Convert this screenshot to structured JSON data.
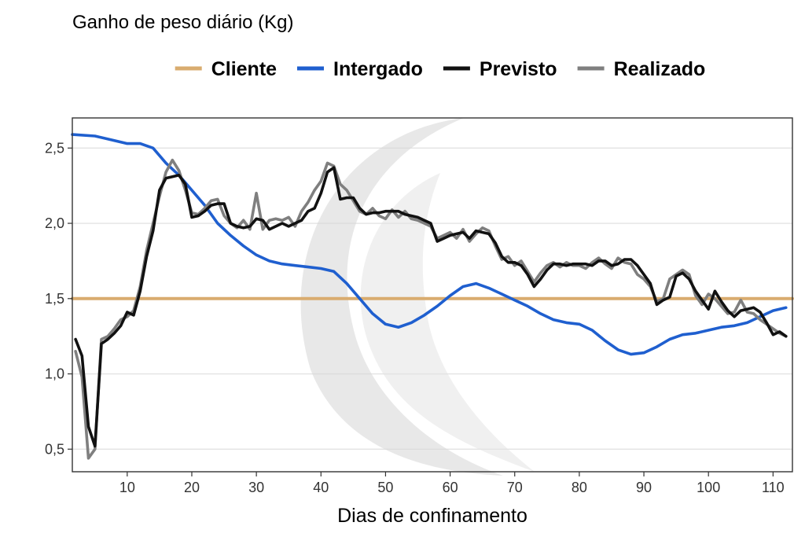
{
  "chart_data": {
    "type": "line",
    "title": "Ganho de peso diário (Kg)",
    "xlabel": "Dias de confinamento",
    "ylabel": "",
    "xlim": [
      1.5,
      113
    ],
    "ylim": [
      0.35,
      2.7
    ],
    "x_ticks": [
      10,
      20,
      30,
      40,
      50,
      60,
      70,
      80,
      90,
      100,
      110
    ],
    "x_tick_labels": [
      "10",
      "20",
      "30",
      "40",
      "50",
      "60",
      "70",
      "80",
      "90",
      "100",
      "110"
    ],
    "y_ticks": [
      0.5,
      1.0,
      1.5,
      2.0,
      2.5
    ],
    "y_tick_labels": [
      "0,5",
      "1,0",
      "1,5",
      "2,0",
      "2,5"
    ],
    "grid": true,
    "legend_position": "top",
    "series": [
      {
        "name": "Cliente",
        "color": "#D9AC6F",
        "points": [
          [
            1.5,
            1.5
          ],
          [
            113,
            1.5
          ]
        ]
      },
      {
        "name": "Intergado",
        "color": "#1F5FCF",
        "points": [
          [
            1.5,
            2.59
          ],
          [
            5,
            2.58
          ],
          [
            8,
            2.55
          ],
          [
            10,
            2.53
          ],
          [
            12,
            2.53
          ],
          [
            14,
            2.5
          ],
          [
            16,
            2.4
          ],
          [
            18,
            2.32
          ],
          [
            20,
            2.22
          ],
          [
            22,
            2.12
          ],
          [
            24,
            2.0
          ],
          [
            26,
            1.92
          ],
          [
            28,
            1.85
          ],
          [
            30,
            1.79
          ],
          [
            32,
            1.75
          ],
          [
            34,
            1.73
          ],
          [
            36,
            1.72
          ],
          [
            38,
            1.71
          ],
          [
            40,
            1.7
          ],
          [
            42,
            1.68
          ],
          [
            44,
            1.6
          ],
          [
            46,
            1.5
          ],
          [
            48,
            1.4
          ],
          [
            50,
            1.33
          ],
          [
            52,
            1.31
          ],
          [
            54,
            1.34
          ],
          [
            56,
            1.39
          ],
          [
            58,
            1.45
          ],
          [
            60,
            1.52
          ],
          [
            62,
            1.58
          ],
          [
            64,
            1.6
          ],
          [
            66,
            1.57
          ],
          [
            68,
            1.53
          ],
          [
            70,
            1.49
          ],
          [
            72,
            1.45
          ],
          [
            74,
            1.4
          ],
          [
            76,
            1.36
          ],
          [
            78,
            1.34
          ],
          [
            80,
            1.33
          ],
          [
            82,
            1.29
          ],
          [
            84,
            1.22
          ],
          [
            86,
            1.16
          ],
          [
            88,
            1.13
          ],
          [
            90,
            1.14
          ],
          [
            92,
            1.18
          ],
          [
            94,
            1.23
          ],
          [
            96,
            1.26
          ],
          [
            98,
            1.27
          ],
          [
            100,
            1.29
          ],
          [
            102,
            1.31
          ],
          [
            104,
            1.32
          ],
          [
            106,
            1.34
          ],
          [
            108,
            1.38
          ],
          [
            110,
            1.42
          ],
          [
            112,
            1.44
          ]
        ]
      },
      {
        "name": "Previsto",
        "color": "#111111",
        "points": [
          [
            2,
            1.23
          ],
          [
            3,
            1.12
          ],
          [
            4,
            0.65
          ],
          [
            5,
            0.52
          ],
          [
            6,
            1.2
          ],
          [
            7,
            1.23
          ],
          [
            8,
            1.27
          ],
          [
            9,
            1.32
          ],
          [
            10,
            1.41
          ],
          [
            11,
            1.39
          ],
          [
            12,
            1.55
          ],
          [
            13,
            1.78
          ],
          [
            14,
            1.95
          ],
          [
            15,
            2.22
          ],
          [
            16,
            2.3
          ],
          [
            17,
            2.31
          ],
          [
            18,
            2.32
          ],
          [
            19,
            2.26
          ],
          [
            20,
            2.04
          ],
          [
            21,
            2.05
          ],
          [
            22,
            2.08
          ],
          [
            23,
            2.12
          ],
          [
            24,
            2.13
          ],
          [
            25,
            2.13
          ],
          [
            26,
            2.0
          ],
          [
            27,
            1.98
          ],
          [
            28,
            1.97
          ],
          [
            29,
            1.98
          ],
          [
            30,
            2.03
          ],
          [
            31,
            2.02
          ],
          [
            32,
            1.96
          ],
          [
            33,
            1.98
          ],
          [
            34,
            2.0
          ],
          [
            35,
            1.98
          ],
          [
            36,
            2.0
          ],
          [
            37,
            2.02
          ],
          [
            38,
            2.08
          ],
          [
            39,
            2.1
          ],
          [
            40,
            2.2
          ],
          [
            41,
            2.34
          ],
          [
            42,
            2.37
          ],
          [
            43,
            2.16
          ],
          [
            44,
            2.17
          ],
          [
            45,
            2.17
          ],
          [
            46,
            2.1
          ],
          [
            47,
            2.06
          ],
          [
            48,
            2.07
          ],
          [
            49,
            2.07
          ],
          [
            50,
            2.08
          ],
          [
            51,
            2.08
          ],
          [
            52,
            2.08
          ],
          [
            53,
            2.06
          ],
          [
            54,
            2.05
          ],
          [
            55,
            2.04
          ],
          [
            56,
            2.02
          ],
          [
            57,
            2.0
          ],
          [
            58,
            1.88
          ],
          [
            59,
            1.9
          ],
          [
            60,
            1.92
          ],
          [
            61,
            1.93
          ],
          [
            62,
            1.94
          ],
          [
            63,
            1.9
          ],
          [
            64,
            1.95
          ],
          [
            65,
            1.94
          ],
          [
            66,
            1.93
          ],
          [
            67,
            1.87
          ],
          [
            68,
            1.78
          ],
          [
            69,
            1.74
          ],
          [
            70,
            1.74
          ],
          [
            71,
            1.72
          ],
          [
            72,
            1.66
          ],
          [
            73,
            1.58
          ],
          [
            74,
            1.63
          ],
          [
            75,
            1.69
          ],
          [
            76,
            1.73
          ],
          [
            77,
            1.73
          ],
          [
            78,
            1.72
          ],
          [
            79,
            1.73
          ],
          [
            80,
            1.73
          ],
          [
            81,
            1.73
          ],
          [
            82,
            1.72
          ],
          [
            83,
            1.75
          ],
          [
            84,
            1.75
          ],
          [
            85,
            1.72
          ],
          [
            86,
            1.73
          ],
          [
            87,
            1.76
          ],
          [
            88,
            1.76
          ],
          [
            89,
            1.72
          ],
          [
            90,
            1.66
          ],
          [
            91,
            1.6
          ],
          [
            92,
            1.46
          ],
          [
            93,
            1.49
          ],
          [
            94,
            1.51
          ],
          [
            95,
            1.65
          ],
          [
            96,
            1.67
          ],
          [
            97,
            1.63
          ],
          [
            98,
            1.55
          ],
          [
            99,
            1.49
          ],
          [
            100,
            1.43
          ],
          [
            101,
            1.55
          ],
          [
            102,
            1.48
          ],
          [
            103,
            1.42
          ],
          [
            104,
            1.38
          ],
          [
            105,
            1.42
          ],
          [
            106,
            1.43
          ],
          [
            107,
            1.44
          ],
          [
            108,
            1.41
          ],
          [
            109,
            1.34
          ],
          [
            110,
            1.26
          ],
          [
            111,
            1.28
          ],
          [
            112,
            1.25
          ]
        ]
      },
      {
        "name": "Realizado",
        "color": "#7F7F7F",
        "points": [
          [
            2,
            1.15
          ],
          [
            3,
            0.98
          ],
          [
            4,
            0.44
          ],
          [
            5,
            0.5
          ],
          [
            6,
            1.23
          ],
          [
            7,
            1.25
          ],
          [
            8,
            1.3
          ],
          [
            9,
            1.36
          ],
          [
            10,
            1.38
          ],
          [
            11,
            1.42
          ],
          [
            12,
            1.58
          ],
          [
            13,
            1.82
          ],
          [
            14,
            2.0
          ],
          [
            15,
            2.18
          ],
          [
            16,
            2.34
          ],
          [
            17,
            2.42
          ],
          [
            18,
            2.35
          ],
          [
            19,
            2.22
          ],
          [
            20,
            2.07
          ],
          [
            21,
            2.06
          ],
          [
            22,
            2.1
          ],
          [
            23,
            2.15
          ],
          [
            24,
            2.16
          ],
          [
            25,
            2.05
          ],
          [
            26,
            2.0
          ],
          [
            27,
            1.97
          ],
          [
            28,
            2.02
          ],
          [
            29,
            1.96
          ],
          [
            30,
            2.2
          ],
          [
            31,
            1.96
          ],
          [
            32,
            2.02
          ],
          [
            33,
            2.03
          ],
          [
            34,
            2.02
          ],
          [
            35,
            2.04
          ],
          [
            36,
            1.98
          ],
          [
            37,
            2.08
          ],
          [
            38,
            2.14
          ],
          [
            39,
            2.22
          ],
          [
            40,
            2.28
          ],
          [
            41,
            2.4
          ],
          [
            42,
            2.38
          ],
          [
            43,
            2.26
          ],
          [
            44,
            2.22
          ],
          [
            45,
            2.15
          ],
          [
            46,
            2.08
          ],
          [
            47,
            2.06
          ],
          [
            48,
            2.1
          ],
          [
            49,
            2.05
          ],
          [
            50,
            2.03
          ],
          [
            51,
            2.09
          ],
          [
            52,
            2.04
          ],
          [
            53,
            2.08
          ],
          [
            54,
            2.03
          ],
          [
            55,
            2.02
          ],
          [
            56,
            2.0
          ],
          [
            57,
            1.98
          ],
          [
            58,
            1.9
          ],
          [
            59,
            1.92
          ],
          [
            60,
            1.94
          ],
          [
            61,
            1.9
          ],
          [
            62,
            1.96
          ],
          [
            63,
            1.88
          ],
          [
            64,
            1.93
          ],
          [
            65,
            1.97
          ],
          [
            66,
            1.95
          ],
          [
            67,
            1.85
          ],
          [
            68,
            1.76
          ],
          [
            69,
            1.78
          ],
          [
            70,
            1.72
          ],
          [
            71,
            1.75
          ],
          [
            72,
            1.68
          ],
          [
            73,
            1.61
          ],
          [
            74,
            1.67
          ],
          [
            75,
            1.72
          ],
          [
            76,
            1.74
          ],
          [
            77,
            1.71
          ],
          [
            78,
            1.74
          ],
          [
            79,
            1.72
          ],
          [
            80,
            1.72
          ],
          [
            81,
            1.7
          ],
          [
            82,
            1.74
          ],
          [
            83,
            1.77
          ],
          [
            84,
            1.73
          ],
          [
            85,
            1.7
          ],
          [
            86,
            1.77
          ],
          [
            87,
            1.74
          ],
          [
            88,
            1.73
          ],
          [
            89,
            1.66
          ],
          [
            90,
            1.63
          ],
          [
            91,
            1.58
          ],
          [
            92,
            1.48
          ],
          [
            93,
            1.5
          ],
          [
            94,
            1.63
          ],
          [
            95,
            1.66
          ],
          [
            96,
            1.69
          ],
          [
            97,
            1.66
          ],
          [
            98,
            1.52
          ],
          [
            99,
            1.46
          ],
          [
            100,
            1.53
          ],
          [
            101,
            1.5
          ],
          [
            102,
            1.45
          ],
          [
            103,
            1.4
          ],
          [
            104,
            1.41
          ],
          [
            105,
            1.49
          ],
          [
            106,
            1.41
          ],
          [
            107,
            1.4
          ],
          [
            108,
            1.36
          ],
          [
            109,
            1.33
          ],
          [
            110,
            1.3
          ],
          [
            111,
            1.27
          ],
          [
            112,
            1.25
          ]
        ]
      }
    ]
  }
}
